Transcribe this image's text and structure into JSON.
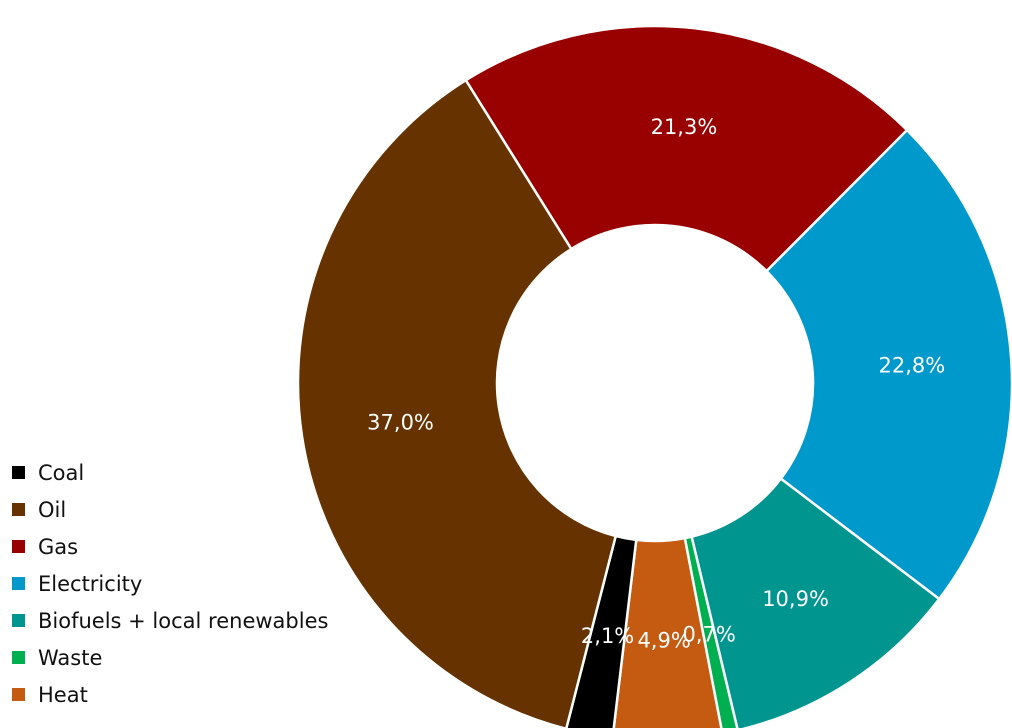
{
  "chart_data": {
    "type": "donut",
    "slices": [
      {
        "name": "Gas",
        "value": 21.3,
        "label": "21,3%",
        "color": "#990000"
      },
      {
        "name": "Electricity",
        "value": 22.8,
        "label": "22,8%",
        "color": "#0099cc"
      },
      {
        "name": "Biofuels + local renewables",
        "value": 10.9,
        "label": "10,9%",
        "color": "#00968f"
      },
      {
        "name": "Waste",
        "value": 0.7,
        "label": "0,7%",
        "color": "#00b050"
      },
      {
        "name": "Heat",
        "value": 4.9,
        "label": "4,9%",
        "color": "#c55a11"
      },
      {
        "name": "Coal",
        "value": 2.1,
        "label": "2,1%",
        "color": "#000000"
      },
      {
        "name": "Oil",
        "value": 37.0,
        "label": "37,0%",
        "color": "#663300"
      }
    ],
    "legend_order": [
      "Coal",
      "Oil",
      "Gas",
      "Electricity",
      "Biofuels + local renewables",
      "Waste",
      "Heat"
    ],
    "legend_position": "bottom-left",
    "label_color": "#ffffff"
  }
}
